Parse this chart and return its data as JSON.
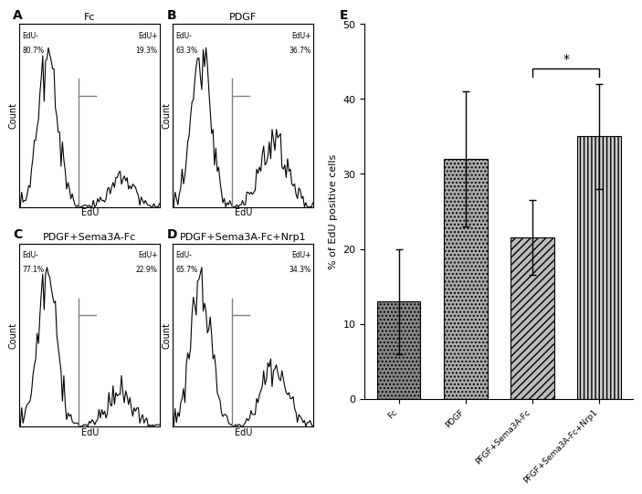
{
  "panel_titles": [
    "Fc",
    "PDGF",
    "PDGF+Sema3A-Fc",
    "PDGF+Sema3A-Fc+Nrp1"
  ],
  "panel_labels": [
    "A",
    "B",
    "C",
    "D"
  ],
  "bar_label": "E",
  "edu_neg_labels": [
    "EdU-",
    "EdU-",
    "EdU-",
    "EdU-"
  ],
  "edu_pos_labels": [
    "EdU+",
    "EdU+",
    "EdU+",
    "EdU+"
  ],
  "edu_neg_pcts": [
    "80.7%",
    "63.3%",
    "77.1%",
    "65.7%"
  ],
  "edu_pos_pcts": [
    "19.3%",
    "36.7%",
    "22.9%",
    "34.3%"
  ],
  "bar_values": [
    13.0,
    32.0,
    21.5,
    35.0
  ],
  "bar_errors": [
    7.0,
    9.0,
    5.0,
    7.0
  ],
  "bar_labels": [
    "Fc",
    "PDGF",
    "PFGF+Sema3A-Fc",
    "PFGF+Sema3A-Fc+Nrp1"
  ],
  "ylabel": "% of EdU positive cells",
  "ylim": [
    0,
    50
  ],
  "yticks": [
    0,
    10,
    20,
    30,
    40,
    50
  ],
  "bg_color": "#ffffff",
  "bar_colors": [
    "#888888",
    "#aaaaaa",
    "#cccccc",
    "#dddddd"
  ],
  "hatches": [
    "...",
    "...",
    "///",
    "|||"
  ]
}
